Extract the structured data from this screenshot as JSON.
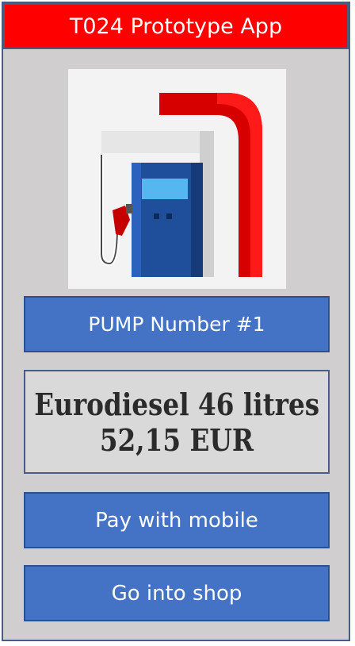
{
  "app": {
    "title": "T024 Prototype App"
  },
  "pump": {
    "image_icon": "fuel-pump-icon",
    "number_label": "PUMP Number #1"
  },
  "fuel": {
    "line1": "Eurodiesel 46 litres",
    "line2": "52,15 EUR"
  },
  "actions": {
    "pay_label": "Pay with mobile",
    "shop_label": "Go into shop"
  },
  "colors": {
    "title_bar": "#ff0000",
    "button": "#4472c4",
    "background": "#d0cece",
    "info_box": "#d9d9d9"
  }
}
